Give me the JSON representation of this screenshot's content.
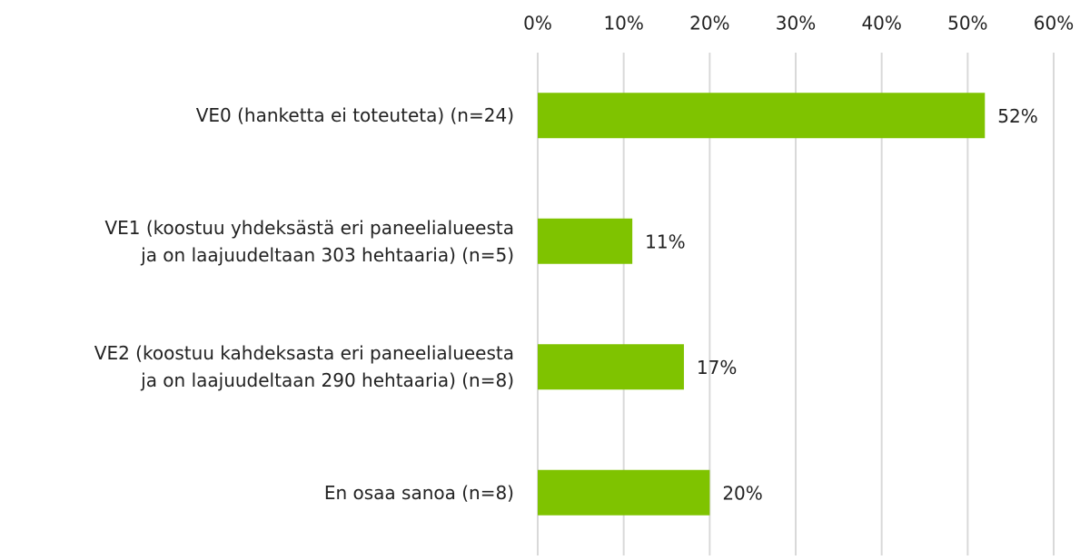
{
  "chart_data": {
    "type": "bar",
    "orientation": "horizontal",
    "categories": [
      "VE0 (hanketta ei toteuteta) (n=24)",
      "VE1 (koostuu yhdeksästä eri paneelialueesta\nja on laajuudeltaan 303 hehtaaria) (n=5)",
      "VE2 (koostuu kahdeksasta eri paneelialueesta\nja on laajuudeltaan 290 hehtaaria) (n=8)",
      "En osaa sanoa (n=8)"
    ],
    "values": [
      52,
      11,
      17,
      20
    ],
    "value_labels": [
      "52%",
      "11%",
      "17%",
      "20%"
    ],
    "color": "#7fc300",
    "xlim": [
      0,
      60
    ],
    "xticks": [
      {
        "value": 0,
        "label": "0%"
      },
      {
        "value": 10,
        "label": "10%"
      },
      {
        "value": 20,
        "label": "20%"
      },
      {
        "value": 30,
        "label": "30%"
      },
      {
        "value": 40,
        "label": "40%"
      },
      {
        "value": 50,
        "label": "50%"
      },
      {
        "value": 60,
        "label": "60%"
      }
    ],
    "grid": true
  }
}
